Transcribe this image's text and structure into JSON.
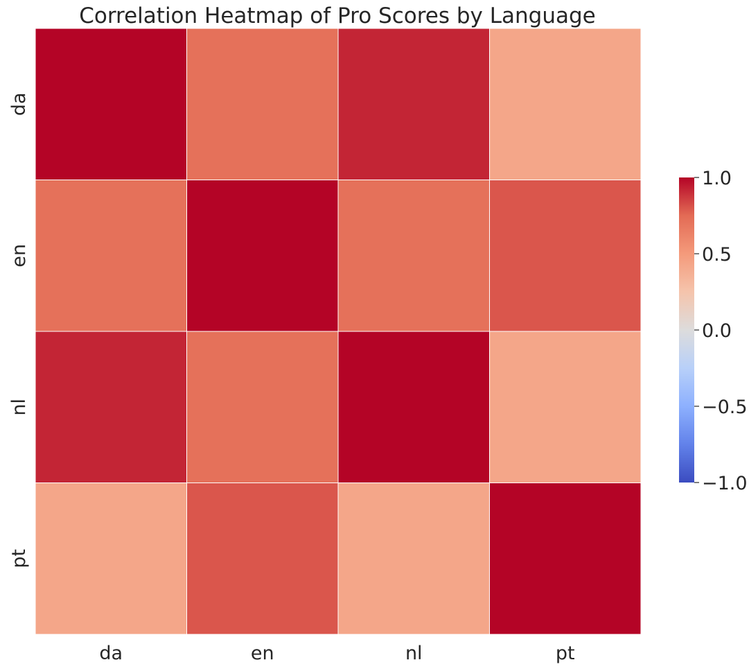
{
  "chart_data": {
    "type": "heatmap",
    "title": "Correlation Heatmap of Pro Scores by Language",
    "xlabel": "",
    "ylabel": "",
    "x_categories": [
      "da",
      "en",
      "nl",
      "pt"
    ],
    "y_categories": [
      "da",
      "en",
      "nl",
      "pt"
    ],
    "values": [
      [
        1.0,
        0.72,
        0.92,
        0.43
      ],
      [
        0.72,
        1.0,
        0.72,
        0.8
      ],
      [
        0.92,
        0.72,
        1.0,
        0.43
      ],
      [
        0.43,
        0.8,
        0.43,
        1.0
      ]
    ],
    "colormap": "coolwarm",
    "vmin": -1.0,
    "vmax": 1.0,
    "colorbar": {
      "ticks": [
        1.0,
        0.5,
        0.0,
        -0.5,
        -1.0
      ],
      "tick_labels": [
        "1.0",
        "0.5",
        "0.0",
        "−0.5",
        "−1.0"
      ],
      "position": "right"
    },
    "grid_line_color": "#ffffff"
  }
}
